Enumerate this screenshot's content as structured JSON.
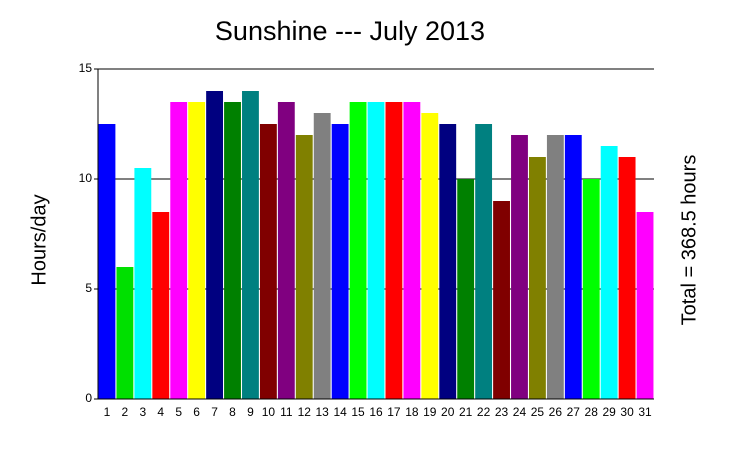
{
  "chart_data": {
    "type": "bar",
    "title": "Sunshine --- July 2013",
    "y_label": "Hours/day",
    "annotation": "Total = 368.5 hours",
    "categories": [
      "1",
      "2",
      "3",
      "4",
      "5",
      "6",
      "7",
      "8",
      "9",
      "10",
      "11",
      "12",
      "13",
      "14",
      "15",
      "16",
      "17",
      "18",
      "19",
      "20",
      "21",
      "22",
      "23",
      "24",
      "25",
      "26",
      "27",
      "28",
      "29",
      "30",
      "31"
    ],
    "values": [
      12.5,
      6,
      10.5,
      8.5,
      13.5,
      13.5,
      14,
      13.5,
      14,
      12.5,
      13.5,
      12,
      13,
      12.5,
      13.5,
      13.5,
      13.5,
      13.5,
      13,
      12.5,
      10,
      12.5,
      9,
      12,
      11,
      12,
      12,
      10,
      11.5,
      11,
      8.5
    ],
    "colors": [
      "#0000ff",
      "#00e000",
      "#00ffff",
      "#ff0000",
      "#ff00ff",
      "#ffff00",
      "#000080",
      "#008000",
      "#008080",
      "#800000",
      "#800080",
      "#808000",
      "#808080",
      "#0000ff",
      "#00ff00",
      "#00ffff",
      "#ff0000",
      "#ff00ff",
      "#ffff00",
      "#000080",
      "#008000",
      "#008080",
      "#800000",
      "#800080",
      "#808000",
      "#808080",
      "#0000ff",
      "#00ff00",
      "#00ffff",
      "#ff0000",
      "#ff00ff"
    ],
    "ylim": [
      0,
      15
    ],
    "yticks": [
      0,
      5,
      10,
      15
    ],
    "grid": true
  }
}
